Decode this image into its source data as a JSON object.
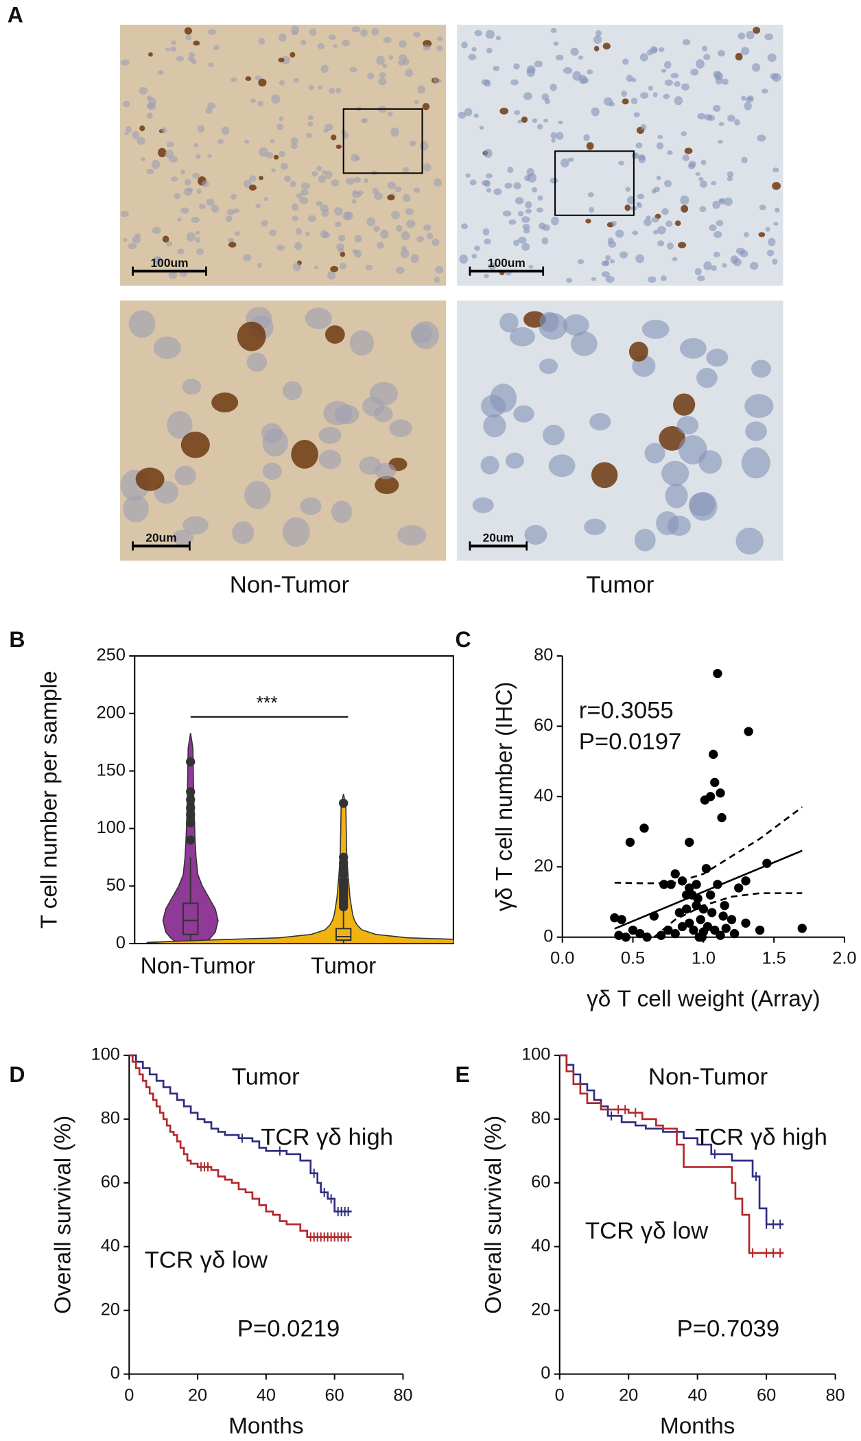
{
  "panel_a": {
    "label": "A",
    "scale_bars": [
      "100um",
      "100um",
      "20um",
      "20um"
    ],
    "columns": [
      "Non-Tumor",
      "Tumor"
    ]
  },
  "chart_data": [
    {
      "type": "violin",
      "label": "B",
      "ylabel": "T cell number per sample",
      "categories": [
        "Non-Tumor",
        "Tumor"
      ],
      "ylim": [
        0,
        250
      ],
      "yticks": [
        0,
        50,
        100,
        150,
        200,
        250
      ],
      "series": [
        {
          "color": "#8e3a96",
          "violin_y": [
            0,
            5,
            10,
            20,
            30,
            40,
            50,
            60,
            75,
            90,
            110,
            130,
            150,
            170,
            183
          ],
          "violin_width": [
            0.065,
            0.102,
            0.126,
            0.14,
            0.126,
            0.093,
            0.06,
            0.037,
            0.028,
            0.023,
            0.019,
            0.016,
            0.014,
            0.012,
            0
          ],
          "box": {
            "whisker_low": 0,
            "q1": 8,
            "median": 20,
            "q3": 35,
            "whisker_high": 75
          },
          "points": [
            158,
            132,
            125,
            118,
            112,
            105,
            90
          ]
        },
        {
          "color": "#f1b312",
          "violin_y": [
            0,
            1,
            3,
            5,
            8,
            12,
            16,
            20,
            25,
            30,
            40,
            50,
            60,
            70,
            80,
            100,
            120,
            130
          ],
          "violin_width": [
            0.93,
            1,
            0.698,
            0.326,
            0.163,
            0.093,
            0.07,
            0.056,
            0.047,
            0.042,
            0.033,
            0.028,
            0.023,
            0.019,
            0.016,
            0.014,
            0.012,
            0
          ],
          "box": {
            "whisker_low": 0,
            "q1": 3,
            "median": 6,
            "q3": 13,
            "whisker_high": 30
          },
          "points": [
            122,
            75,
            70,
            65,
            60,
            55,
            52,
            50,
            48,
            46,
            44,
            42,
            40,
            38,
            36,
            34,
            32
          ]
        }
      ],
      "annotation": "***",
      "annotation_y": 197
    },
    {
      "type": "scatter",
      "label": "C",
      "xlabel": "γδ T cell weight (Array)",
      "ylabel": "γδ T cell number (IHC)",
      "xlim": [
        0,
        2
      ],
      "ylim": [
        0,
        80
      ],
      "xticks": [
        {
          "value": 0,
          "label": "0.0"
        },
        0.5,
        {
          "value": 1,
          "label": "1.0"
        },
        1.5,
        {
          "value": 2,
          "label": "2.0"
        }
      ],
      "yticks": [
        0,
        20,
        40,
        60,
        80
      ],
      "color": "#000000",
      "x": [
        1.1,
        1.32,
        1.07,
        1.08,
        1.12,
        1.05,
        1.01,
        1.13,
        0.58,
        0.48,
        0.9,
        1.45,
        1.02,
        1.3,
        0.8,
        0.77,
        0.72,
        0.85,
        0.95,
        1.1,
        0.9,
        0.92,
        0.96,
        1.05,
        1.25,
        0.37,
        0.42,
        0.65,
        0.83,
        0.88,
        0.95,
        1.0,
        1.06,
        1.14,
        1.2,
        0.5,
        0.55,
        0.6,
        0.45,
        0.7,
        0.75,
        0.8,
        0.85,
        0.9,
        0.93,
        0.97,
        1.0,
        1.03,
        1.08,
        1.12,
        1.16,
        1.22,
        1.3,
        1.4,
        1.7,
        0.98,
        1.15,
        0.88,
        0.99,
        0.4
      ],
      "values": [
        75,
        58.5,
        52,
        44,
        41,
        40,
        39,
        34,
        31,
        27,
        27,
        21,
        19.5,
        16,
        18,
        15,
        15,
        16,
        15,
        15,
        14,
        12,
        11,
        12,
        14,
        5.5,
        5,
        6,
        7,
        8,
        9,
        8,
        7,
        6,
        5,
        2,
        1,
        0,
        0,
        0.5,
        2,
        1,
        3,
        4,
        2,
        0,
        1.5,
        3,
        2,
        0.5,
        2.5,
        1,
        4,
        2,
        2.5,
        5,
        9,
        12,
        0,
        0.5
      ],
      "annotations": [
        "r=0.3055",
        "P=0.0197"
      ],
      "fit": {
        "x": [
          0.37,
          1.7
        ],
        "values": [
          2.4,
          24.6
        ]
      },
      "ci_upper": {
        "x": [
          0.37,
          0.6,
          0.8,
          1.0,
          1.2,
          1.4,
          1.7
        ],
        "values": [
          15.5,
          15.3,
          15.5,
          18,
          23,
          28,
          37
        ]
      },
      "ci_lower": {
        "x": [
          0.65,
          0.8,
          1.0,
          1.2,
          1.4,
          1.7
        ],
        "values": [
          0,
          5,
          9,
          11.5,
          12.5,
          12.5
        ]
      }
    },
    {
      "type": "step",
      "label": "D",
      "title": "Tumor",
      "xlabel": "Months",
      "ylabel": "Overall survival (%)",
      "xlim": [
        0,
        80
      ],
      "ylim": [
        0,
        100
      ],
      "xticks": [
        0,
        20,
        40,
        60,
        80
      ],
      "yticks": [
        0,
        20,
        40,
        60,
        80,
        100
      ],
      "series": [
        {
          "name": "TCR γδ high",
          "color": "#2e2c80",
          "x": [
            0,
            2,
            4,
            6,
            8,
            10,
            12,
            14,
            16,
            18,
            20,
            22,
            24,
            26,
            28,
            32,
            36,
            38,
            40,
            46,
            50,
            53,
            55,
            56,
            58,
            60,
            65
          ],
          "values": [
            100,
            98,
            96,
            94,
            92,
            90,
            88,
            86,
            84,
            82,
            80,
            79,
            77,
            76,
            75,
            74,
            73,
            71,
            70,
            69,
            67,
            63,
            60,
            57,
            55,
            51,
            51
          ],
          "censor_x": [
            33,
            44,
            54,
            57,
            59,
            61,
            62,
            63,
            64
          ],
          "censor_values": [
            74,
            70,
            63,
            57,
            55,
            51,
            51,
            51,
            51
          ]
        },
        {
          "name": "TCR γδ low",
          "color": "#b3262a",
          "x": [
            0,
            1,
            2,
            3,
            4,
            5,
            6,
            7,
            8,
            9,
            10,
            11,
            12,
            13,
            14,
            15,
            16,
            17,
            18,
            20,
            24,
            26,
            28,
            30,
            32,
            34,
            36,
            38,
            40,
            42,
            44,
            46,
            50,
            52,
            65
          ],
          "values": [
            100,
            98,
            96,
            94,
            92,
            90,
            88,
            86,
            84,
            82,
            80,
            78,
            76,
            75,
            73,
            71,
            69,
            67,
            66,
            65,
            64,
            62,
            61,
            60,
            58,
            57,
            55,
            53,
            51,
            50,
            48,
            47,
            45,
            43,
            43
          ],
          "censor_x": [
            21,
            22,
            23,
            53,
            54,
            55,
            56,
            57,
            58,
            59,
            60,
            61,
            62,
            63,
            64
          ],
          "censor_values": [
            65,
            65,
            65,
            43,
            43,
            43,
            43,
            43,
            43,
            43,
            43,
            43,
            43,
            43,
            43
          ]
        }
      ],
      "annotation": "P=0.0219"
    },
    {
      "type": "step",
      "label": "E",
      "title": "Non-Tumor",
      "xlabel": "Months",
      "ylabel": "Overall survival (%)",
      "xlim": [
        0,
        80
      ],
      "ylim": [
        0,
        100
      ],
      "xticks": [
        0,
        20,
        40,
        60,
        80
      ],
      "yticks": [
        0,
        20,
        40,
        60,
        80,
        100
      ],
      "series": [
        {
          "name": "TCR γδ high",
          "color": "#2e2c80",
          "x": [
            0,
            2,
            4,
            6,
            8,
            10,
            12,
            14,
            18,
            22,
            25,
            30,
            36,
            40,
            44,
            50,
            56,
            58,
            60,
            65
          ],
          "values": [
            100,
            97,
            94,
            91,
            89,
            86,
            84,
            81,
            79,
            78,
            77,
            76,
            74,
            72,
            69,
            67,
            62,
            52,
            47,
            47
          ],
          "censor_x": [
            15,
            45,
            57,
            60,
            62,
            64
          ],
          "censor_values": [
            81,
            69,
            62,
            47,
            47,
            47
          ]
        },
        {
          "name": "TCR γδ low",
          "color": "#b3262a",
          "x": [
            0,
            2,
            4,
            6,
            8,
            12,
            20,
            24,
            28,
            30,
            34,
            36,
            50,
            51,
            53,
            55,
            65
          ],
          "values": [
            100,
            95,
            91,
            88,
            85,
            83,
            82,
            80,
            78,
            77,
            72,
            65,
            60,
            55,
            50,
            38,
            38
          ],
          "censor_x": [
            17,
            19,
            22,
            56,
            60,
            62,
            64
          ],
          "censor_values": [
            83,
            83,
            82,
            38,
            38,
            38,
            38
          ]
        }
      ],
      "annotation": "P=0.7039"
    }
  ]
}
